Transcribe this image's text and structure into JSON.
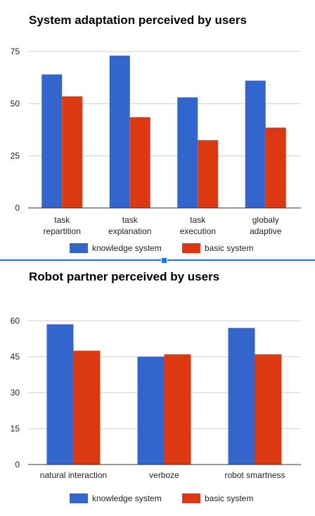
{
  "colors": {
    "knowledge": "#3366cc",
    "basic": "#dc3912",
    "grid": "#cccccc",
    "axis": "#333333",
    "text": "#222222"
  },
  "chart_data": [
    {
      "type": "bar",
      "title": "System adaptation perceived by users",
      "categories": [
        [
          "task",
          "repartition"
        ],
        [
          "task",
          "explanation"
        ],
        [
          "task",
          "execution"
        ],
        [
          "globaly",
          "adaptive"
        ]
      ],
      "series": [
        {
          "name": "knowledge system",
          "values": [
            64,
            73,
            53,
            61
          ]
        },
        {
          "name": "basic system",
          "values": [
            53.5,
            43.5,
            32.5,
            38.5
          ]
        }
      ],
      "yticks": [
        0,
        25,
        50,
        75
      ],
      "ylim": [
        0,
        75
      ],
      "grid": true,
      "legend": "bottom"
    },
    {
      "type": "bar",
      "title": "Robot partner perceived by users",
      "categories": [
        [
          "natural interaction"
        ],
        [
          "verboze"
        ],
        [
          "robot smartness"
        ]
      ],
      "series": [
        {
          "name": "knowledge system",
          "values": [
            58.5,
            45,
            57
          ]
        },
        {
          "name": "basic system",
          "values": [
            47.5,
            46,
            46
          ]
        }
      ],
      "yticks": [
        0,
        15,
        30,
        45,
        60
      ],
      "ylim": [
        0,
        60
      ],
      "grid": true,
      "legend": "bottom"
    }
  ]
}
